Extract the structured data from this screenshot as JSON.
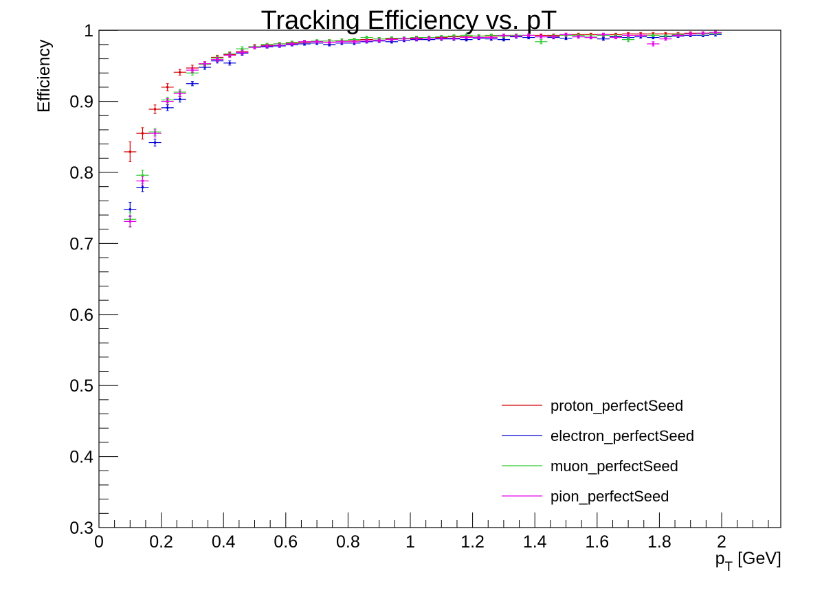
{
  "chart_data": {
    "type": "scatter",
    "title": "Tracking Efficiency vs. pT",
    "xlabel": {
      "main": "p",
      "sub": "T",
      "rest": " [GeV]"
    },
    "ylabel": "Efficiency",
    "xlim": [
      0,
      2.2
    ],
    "ylim": [
      0.3,
      1.0
    ],
    "x_tick_labels": [
      "0",
      "0.2",
      "0.4",
      "0.6",
      "0.8",
      "1",
      "1.2",
      "1.4",
      "1.6",
      "1.8",
      "2"
    ],
    "y_tick_labels": [
      "0.3",
      "0.4",
      "0.5",
      "0.6",
      "0.7",
      "0.8",
      "0.9",
      "1"
    ],
    "grid": false,
    "legend_position": "bottom-right",
    "x_bin_half_width": 0.02,
    "x": [
      0.1,
      0.14,
      0.18,
      0.22,
      0.26,
      0.3,
      0.34,
      0.38,
      0.42,
      0.46,
      0.5,
      0.54,
      0.58,
      0.62,
      0.66,
      0.7,
      0.74,
      0.78,
      0.82,
      0.86,
      0.9,
      0.94,
      0.98,
      1.02,
      1.06,
      1.1,
      1.14,
      1.18,
      1.22,
      1.26,
      1.3,
      1.34,
      1.38,
      1.42,
      1.46,
      1.5,
      1.54,
      1.58,
      1.62,
      1.66,
      1.7,
      1.74,
      1.78,
      1.82,
      1.86,
      1.9,
      1.94,
      1.98
    ],
    "series": [
      {
        "name": "proton_perfectSeed",
        "color": "#d40000",
        "values": [
          0.829,
          0.855,
          0.889,
          0.92,
          0.941,
          0.947,
          0.953,
          0.962,
          0.966,
          0.97,
          0.977,
          0.979,
          0.981,
          0.982,
          0.983,
          0.984,
          0.985,
          0.986,
          0.986,
          0.987,
          0.988,
          0.988,
          0.989,
          0.989,
          0.99,
          0.99,
          0.991,
          0.991,
          0.992,
          0.992,
          0.992,
          0.993,
          0.993,
          0.993,
          0.993,
          0.994,
          0.994,
          0.994,
          0.994,
          0.994,
          0.995,
          0.995,
          0.995,
          0.995,
          0.995,
          0.996,
          0.996,
          0.996
        ],
        "errors": [
          0.014,
          0.008,
          0.006,
          0.005,
          0.004,
          0.004,
          0.003,
          0.003,
          0.003,
          0.003,
          0.003,
          0.002,
          0.002,
          0.002,
          0.002,
          0.002,
          0.002,
          0.002,
          0.002,
          0.002,
          0.002,
          0.002,
          0.002,
          0.002,
          0.002,
          0.002,
          0.002,
          0.002,
          0.002,
          0.002,
          0.002,
          0.002,
          0.002,
          0.002,
          0.002,
          0.002,
          0.002,
          0.002,
          0.002,
          0.002,
          0.002,
          0.002,
          0.002,
          0.002,
          0.002,
          0.002,
          0.002,
          0.002
        ]
      },
      {
        "name": "electron_perfectSeed",
        "color": "#0000d4",
        "values": [
          0.748,
          0.779,
          0.842,
          0.891,
          0.903,
          0.925,
          0.948,
          0.957,
          0.954,
          0.968,
          0.976,
          0.977,
          0.978,
          0.98,
          0.981,
          0.982,
          0.98,
          0.982,
          0.982,
          0.984,
          0.985,
          0.984,
          0.986,
          0.987,
          0.987,
          0.988,
          0.988,
          0.987,
          0.989,
          0.988,
          0.987,
          0.991,
          0.99,
          0.991,
          0.99,
          0.989,
          0.991,
          0.99,
          0.988,
          0.991,
          0.99,
          0.991,
          0.99,
          0.991,
          0.992,
          0.993,
          0.993,
          0.994
        ],
        "errors": [
          0.01,
          0.006,
          0.005,
          0.004,
          0.004,
          0.003,
          0.003,
          0.003,
          0.003,
          0.003,
          0.002,
          0.002,
          0.002,
          0.002,
          0.002,
          0.002,
          0.002,
          0.002,
          0.002,
          0.002,
          0.002,
          0.002,
          0.002,
          0.002,
          0.002,
          0.002,
          0.002,
          0.002,
          0.002,
          0.002,
          0.002,
          0.002,
          0.002,
          0.002,
          0.002,
          0.002,
          0.002,
          0.002,
          0.002,
          0.002,
          0.002,
          0.002,
          0.002,
          0.002,
          0.002,
          0.002,
          0.002,
          0.002
        ]
      },
      {
        "name": "muon_perfectSeed",
        "color": "#33cc33",
        "values": [
          0.734,
          0.796,
          0.857,
          0.902,
          0.913,
          0.94,
          0.952,
          0.961,
          0.967,
          0.974,
          0.977,
          0.98,
          0.981,
          0.983,
          0.984,
          0.985,
          0.985,
          0.986,
          0.987,
          0.99,
          0.988,
          0.989,
          0.989,
          0.99,
          0.99,
          0.991,
          0.992,
          0.993,
          0.992,
          0.993,
          0.992,
          0.993,
          0.993,
          0.984,
          0.992,
          0.993,
          0.993,
          0.992,
          0.993,
          0.992,
          0.987,
          0.993,
          0.993,
          0.992,
          0.994,
          0.995,
          0.995,
          0.996
        ],
        "errors": [
          0.01,
          0.007,
          0.005,
          0.004,
          0.004,
          0.003,
          0.003,
          0.003,
          0.003,
          0.003,
          0.002,
          0.002,
          0.002,
          0.002,
          0.002,
          0.002,
          0.002,
          0.002,
          0.002,
          0.002,
          0.002,
          0.002,
          0.002,
          0.002,
          0.002,
          0.002,
          0.002,
          0.002,
          0.002,
          0.002,
          0.002,
          0.002,
          0.002,
          0.003,
          0.002,
          0.002,
          0.002,
          0.002,
          0.002,
          0.002,
          0.003,
          0.002,
          0.002,
          0.002,
          0.002,
          0.002,
          0.002,
          0.002
        ]
      },
      {
        "name": "pion_perfectSeed",
        "color": "#e600e6",
        "values": [
          0.731,
          0.788,
          0.855,
          0.9,
          0.911,
          0.944,
          0.953,
          0.959,
          0.965,
          0.969,
          0.976,
          0.978,
          0.979,
          0.981,
          0.984,
          0.984,
          0.983,
          0.984,
          0.984,
          0.985,
          0.986,
          0.987,
          0.988,
          0.988,
          0.989,
          0.989,
          0.989,
          0.99,
          0.99,
          0.99,
          0.993,
          0.992,
          0.993,
          0.991,
          0.991,
          0.994,
          0.991,
          0.99,
          0.994,
          0.99,
          0.993,
          0.993,
          0.981,
          0.988,
          0.993,
          0.995,
          0.996,
          0.997
        ],
        "errors": [
          0.008,
          0.006,
          0.005,
          0.004,
          0.004,
          0.003,
          0.003,
          0.003,
          0.003,
          0.003,
          0.002,
          0.002,
          0.002,
          0.002,
          0.002,
          0.002,
          0.002,
          0.002,
          0.002,
          0.002,
          0.002,
          0.002,
          0.002,
          0.002,
          0.002,
          0.002,
          0.002,
          0.002,
          0.002,
          0.002,
          0.002,
          0.002,
          0.002,
          0.002,
          0.002,
          0.002,
          0.002,
          0.002,
          0.002,
          0.002,
          0.002,
          0.002,
          0.003,
          0.002,
          0.002,
          0.002,
          0.002,
          0.002
        ]
      }
    ]
  }
}
